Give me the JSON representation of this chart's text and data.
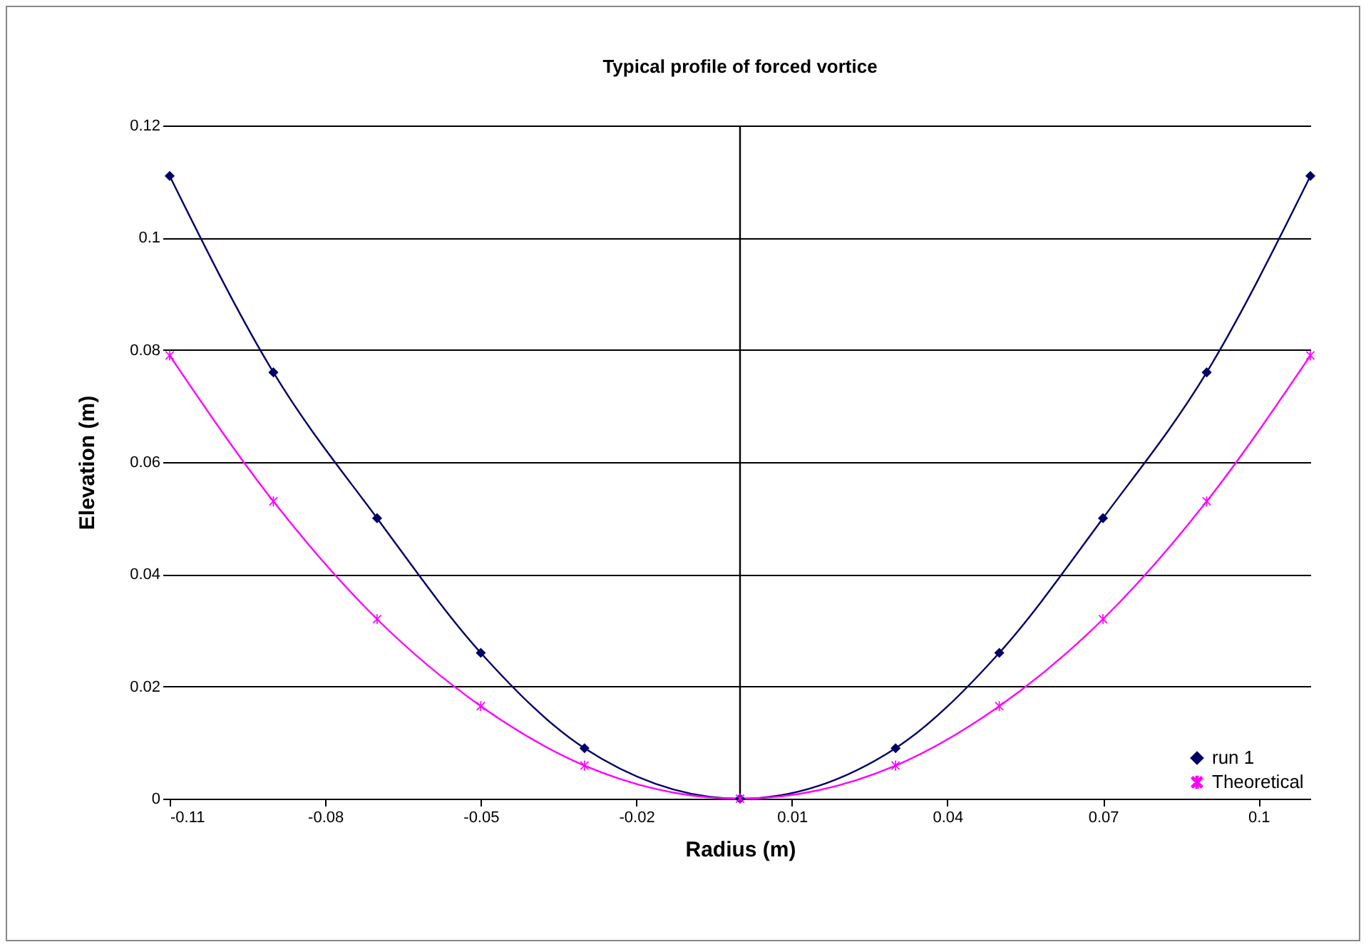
{
  "chart_data": {
    "type": "line",
    "title": "Typical profile of forced vortice",
    "xlabel": "Radius  (m)",
    "ylabel": "Elevation (m)",
    "x": [
      -0.11,
      -0.09,
      -0.07,
      -0.05,
      -0.03,
      0,
      0.03,
      0.05,
      0.07,
      0.09,
      0.11
    ],
    "series": [
      {
        "name": "run 1",
        "color": "#000066",
        "marker": "diamond",
        "values": [
          0.111,
          0.076,
          0.05,
          0.026,
          0.009,
          0,
          0.009,
          0.026,
          0.05,
          0.076,
          0.111
        ]
      },
      {
        "name": "Theoretical",
        "color": "#ff00ff",
        "marker": "cross",
        "values": [
          0.079,
          0.053,
          0.032,
          0.0165,
          0.0059,
          0,
          0.0059,
          0.0165,
          0.032,
          0.053,
          0.079
        ]
      }
    ],
    "xlim": [
      -0.11,
      0.11
    ],
    "xticks": [
      -0.11,
      -0.08,
      -0.05,
      -0.02,
      0.01,
      0.04,
      0.07,
      0.1
    ],
    "ylim": [
      0,
      0.12
    ],
    "yticks": [
      0,
      0.02,
      0.04,
      0.06,
      0.08,
      0.1,
      0.12
    ],
    "ref_lines": [
      {
        "axis": "x",
        "value": 0,
        "color": "#000000"
      }
    ],
    "grid": "y",
    "legend": "bottom right",
    "line_style": "solid"
  }
}
